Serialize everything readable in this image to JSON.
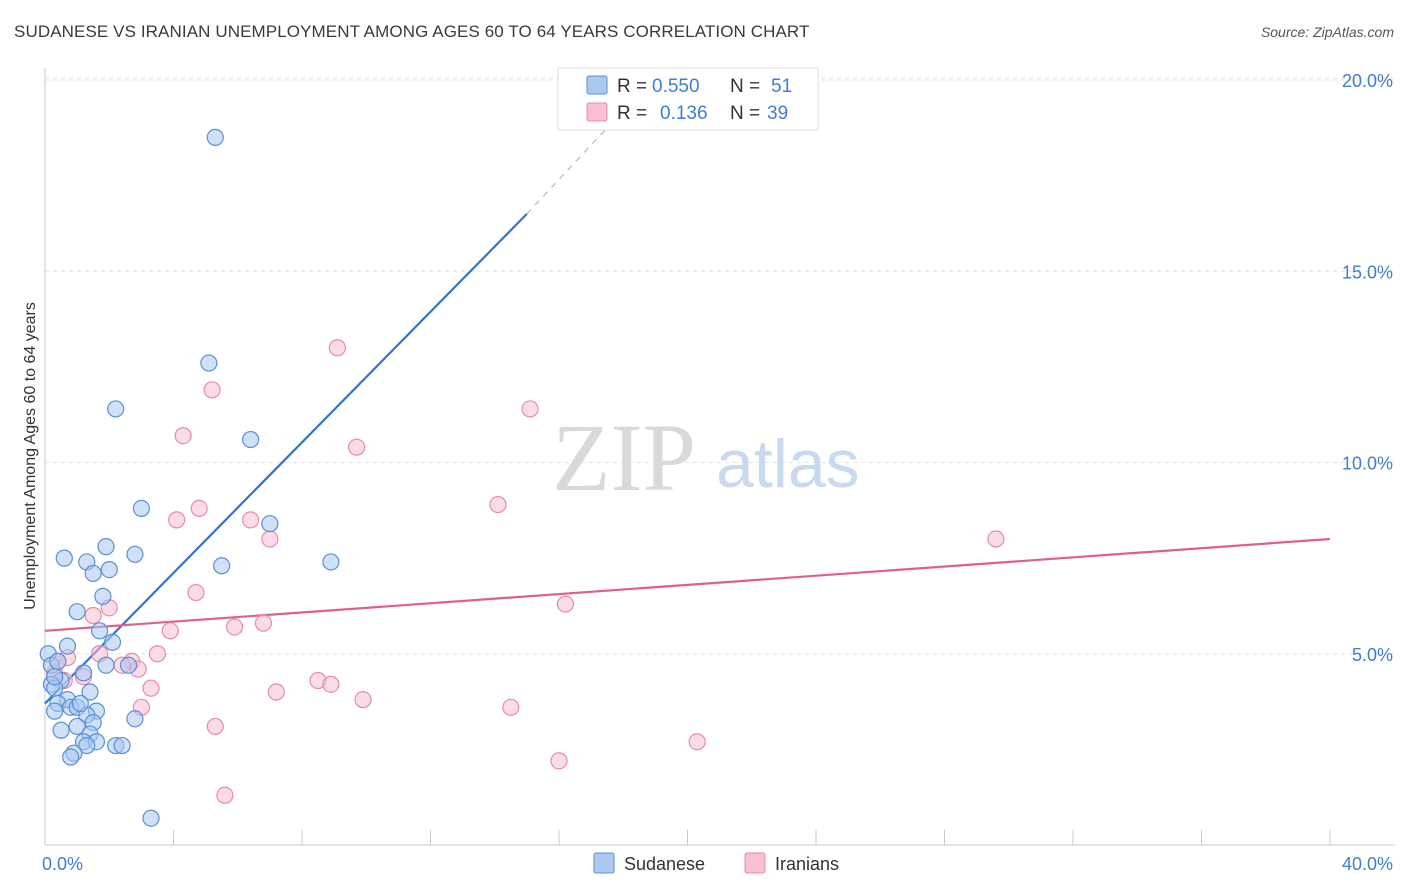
{
  "title": "SUDANESE VS IRANIAN UNEMPLOYMENT AMONG AGES 60 TO 64 YEARS CORRELATION CHART",
  "source": "Source: ZipAtlas.com",
  "watermark": {
    "zip": "ZIP",
    "atlas": "atlas"
  },
  "colors": {
    "sudanese_fill": "#aac8f0",
    "sudanese_stroke": "#5a8fd6",
    "sudanese_line": "#2f74d0",
    "iranians_fill": "#f7c0d2",
    "iranians_stroke": "#e88aa8",
    "iranians_line": "#e0608a",
    "tick_text": "#3d7dd8",
    "grid": "#e3e3e3"
  },
  "legend": {
    "r_label": "R =",
    "n_label": "N =",
    "sudanese": {
      "r": "0.550",
      "n": "51"
    },
    "iranians": {
      "r": "0.136",
      "n": "39"
    }
  },
  "bottom_legend": {
    "sudanese": "Sudanese",
    "iranians": "Iranians"
  },
  "chart_data": {
    "type": "scatter",
    "title": "SUDANESE VS IRANIAN UNEMPLOYMENT AMONG AGES 60 TO 64 YEARS CORRELATION CHART",
    "xlabel": "",
    "ylabel": "Unemployment Among Ages 60 to 64 years",
    "xlim": [
      0,
      40
    ],
    "ylim": [
      0,
      20
    ],
    "x_tick_labels": [
      "0.0%",
      "40.0%"
    ],
    "y_ticks": [
      5,
      10,
      15,
      20
    ],
    "y_tick_labels": [
      "5.0%",
      "10.0%",
      "15.0%",
      "20.0%"
    ],
    "grid": true,
    "legend_position": "top-center",
    "series": [
      {
        "name": "Sudanese",
        "r": 0.55,
        "n": 51,
        "trendline": {
          "x": [
            0,
            15
          ],
          "y": [
            3.7,
            16.5
          ],
          "dashed_extension_to": [
            18,
            19.2
          ]
        },
        "points": [
          [
            5.3,
            18.5
          ],
          [
            5.1,
            12.6
          ],
          [
            2.2,
            11.4
          ],
          [
            6.4,
            10.6
          ],
          [
            3.0,
            8.8
          ],
          [
            7.0,
            8.4
          ],
          [
            0.6,
            7.5
          ],
          [
            1.9,
            7.8
          ],
          [
            2.8,
            7.6
          ],
          [
            8.9,
            7.4
          ],
          [
            1.3,
            7.4
          ],
          [
            2.0,
            7.2
          ],
          [
            1.5,
            7.1
          ],
          [
            5.5,
            7.3
          ],
          [
            1.0,
            6.1
          ],
          [
            1.8,
            6.5
          ],
          [
            1.7,
            5.6
          ],
          [
            2.1,
            5.3
          ],
          [
            0.7,
            5.2
          ],
          [
            0.1,
            5.0
          ],
          [
            0.2,
            4.7
          ],
          [
            1.9,
            4.7
          ],
          [
            2.6,
            4.7
          ],
          [
            1.2,
            4.5
          ],
          [
            0.5,
            4.3
          ],
          [
            0.2,
            4.2
          ],
          [
            0.3,
            4.1
          ],
          [
            1.4,
            4.0
          ],
          [
            0.7,
            3.8
          ],
          [
            0.4,
            3.7
          ],
          [
            0.8,
            3.6
          ],
          [
            0.3,
            3.5
          ],
          [
            1.0,
            3.6
          ],
          [
            1.6,
            3.5
          ],
          [
            1.3,
            3.4
          ],
          [
            1.5,
            3.2
          ],
          [
            2.8,
            3.3
          ],
          [
            1.0,
            3.1
          ],
          [
            0.5,
            3.0
          ],
          [
            1.4,
            2.9
          ],
          [
            1.2,
            2.7
          ],
          [
            1.6,
            2.7
          ],
          [
            1.3,
            2.6
          ],
          [
            2.2,
            2.6
          ],
          [
            2.4,
            2.6
          ],
          [
            0.9,
            2.4
          ],
          [
            0.8,
            2.3
          ],
          [
            3.3,
            0.7
          ],
          [
            0.3,
            4.4
          ],
          [
            1.1,
            3.7
          ],
          [
            0.4,
            4.8
          ]
        ]
      },
      {
        "name": "Iranians",
        "r": 0.136,
        "n": 39,
        "trendline": {
          "x": [
            0,
            40
          ],
          "y": [
            5.6,
            8.0
          ]
        },
        "points": [
          [
            9.1,
            13.0
          ],
          [
            5.2,
            11.9
          ],
          [
            15.1,
            11.4
          ],
          [
            4.3,
            10.7
          ],
          [
            9.7,
            10.4
          ],
          [
            14.1,
            8.9
          ],
          [
            4.8,
            8.8
          ],
          [
            4.1,
            8.5
          ],
          [
            6.4,
            8.5
          ],
          [
            29.6,
            8.0
          ],
          [
            7.0,
            8.0
          ],
          [
            4.7,
            6.6
          ],
          [
            16.2,
            6.3
          ],
          [
            2.0,
            6.2
          ],
          [
            1.5,
            6.0
          ],
          [
            6.8,
            5.8
          ],
          [
            5.9,
            5.7
          ],
          [
            3.9,
            5.6
          ],
          [
            1.7,
            5.0
          ],
          [
            3.5,
            5.0
          ],
          [
            0.7,
            4.9
          ],
          [
            0.4,
            4.8
          ],
          [
            2.7,
            4.8
          ],
          [
            2.4,
            4.7
          ],
          [
            2.9,
            4.6
          ],
          [
            1.2,
            4.4
          ],
          [
            0.6,
            4.3
          ],
          [
            8.5,
            4.3
          ],
          [
            8.9,
            4.2
          ],
          [
            3.3,
            4.1
          ],
          [
            7.2,
            4.0
          ],
          [
            9.9,
            3.8
          ],
          [
            3.0,
            3.6
          ],
          [
            14.5,
            3.6
          ],
          [
            5.3,
            3.1
          ],
          [
            20.3,
            2.7
          ],
          [
            16.0,
            2.2
          ],
          [
            5.6,
            1.3
          ],
          [
            0.3,
            4.5
          ]
        ]
      }
    ]
  }
}
